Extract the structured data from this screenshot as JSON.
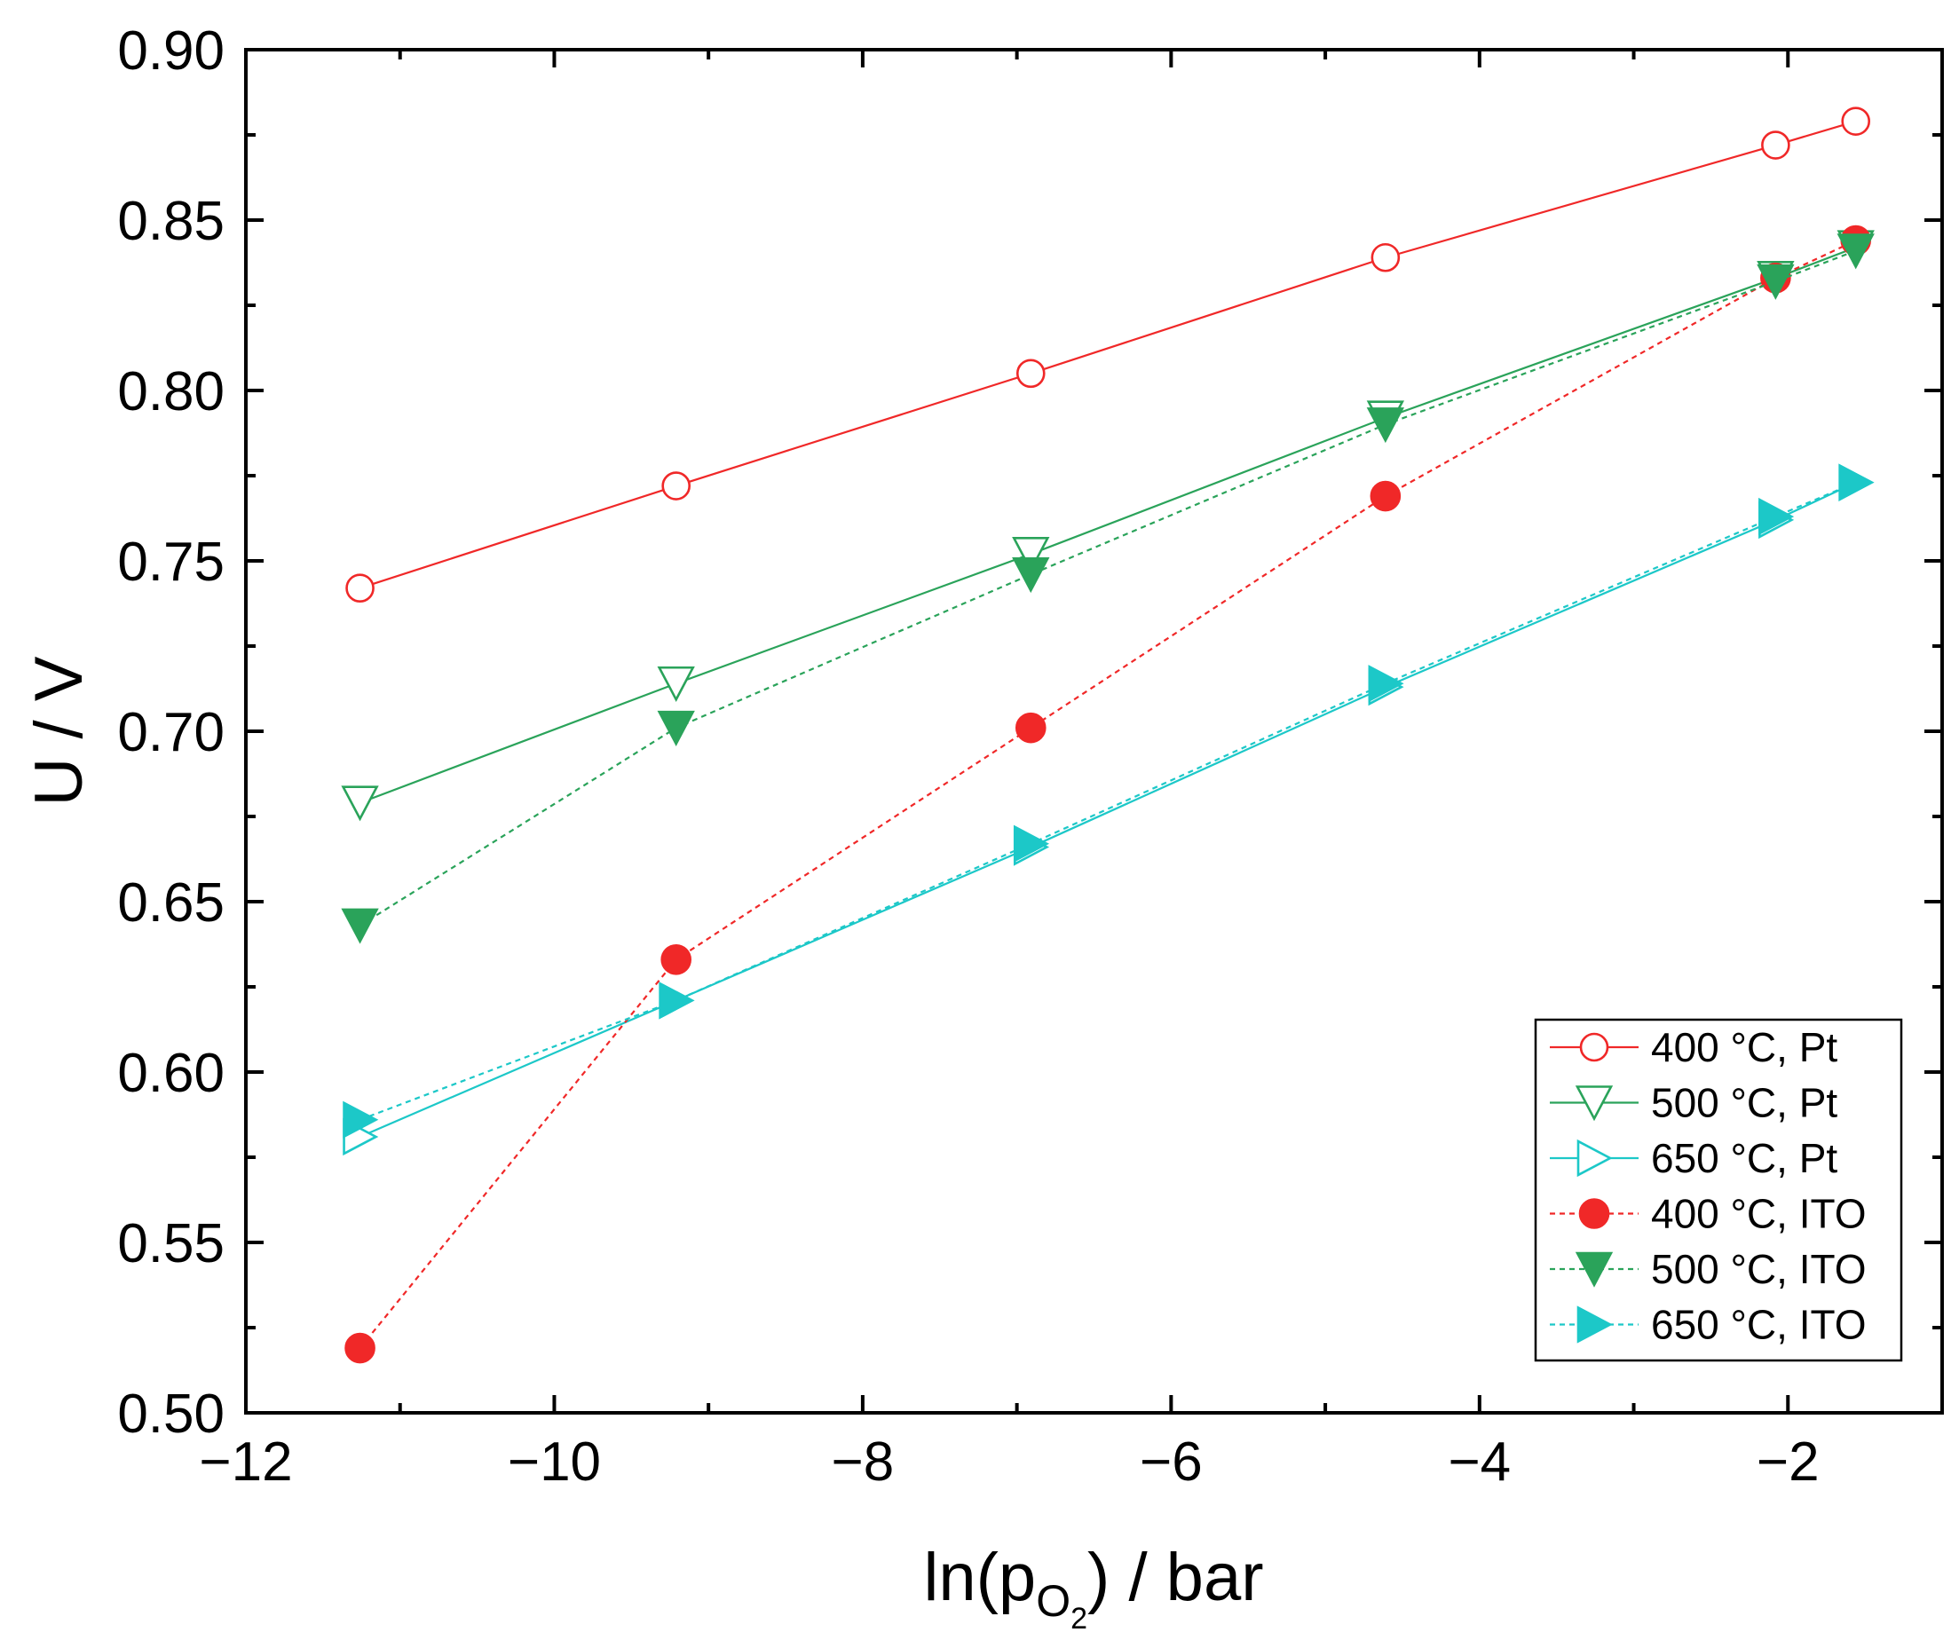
{
  "chart_data": {
    "type": "line",
    "title": "",
    "xlabel": {
      "prefix": "ln(p",
      "sub": "O",
      "subsub": "2",
      "suffix": ") / bar"
    },
    "ylabel": "U / V",
    "xlim": [
      -12,
      -1
    ],
    "ylim": [
      0.5,
      0.9
    ],
    "xticks": [
      -12,
      -10,
      -8,
      -6,
      -4,
      -2
    ],
    "xtick_labels": [
      "−12",
      "−10",
      "−8",
      "−6",
      "−4",
      "−2"
    ],
    "yticks": [
      0.5,
      0.55,
      0.6,
      0.65,
      0.7,
      0.75,
      0.8,
      0.85,
      0.9
    ],
    "ytick_labels": [
      "0.50",
      "0.55",
      "0.60",
      "0.65",
      "0.70",
      "0.75",
      "0.80",
      "0.85",
      "0.90"
    ],
    "grid": false,
    "legend_position": "bottom-right",
    "x": [
      -11.26,
      -9.21,
      -6.91,
      -4.61,
      -2.08,
      -1.56
    ],
    "series": [
      {
        "name": "400 °C, Pt",
        "color": "#f02828",
        "marker": "circle",
        "filled": false,
        "line": "solid",
        "values": [
          0.742,
          0.772,
          0.805,
          0.839,
          0.872,
          0.879
        ]
      },
      {
        "name": "500 °C, Pt",
        "color": "#2aa35a",
        "marker": "triangle-down",
        "filled": false,
        "line": "solid",
        "values": [
          0.679,
          0.714,
          0.752,
          0.792,
          0.833,
          0.842
        ]
      },
      {
        "name": "650 °C, Pt",
        "color": "#1cc8c8",
        "marker": "triangle-right",
        "filled": false,
        "line": "solid",
        "values": [
          0.581,
          0.621,
          0.666,
          0.713,
          0.762,
          0.773
        ]
      },
      {
        "name": "400 °C, ITO",
        "color": "#f02828",
        "marker": "circle",
        "filled": true,
        "line": "dashed",
        "values": [
          0.519,
          0.633,
          0.701,
          0.769,
          0.833,
          0.844
        ]
      },
      {
        "name": "500 °C, ITO",
        "color": "#2aa35a",
        "marker": "triangle-down",
        "filled": true,
        "line": "dashed",
        "values": [
          0.643,
          0.701,
          0.746,
          0.79,
          0.832,
          0.841
        ]
      },
      {
        "name": "650 °C, ITO",
        "color": "#1cc8c8",
        "marker": "triangle-right",
        "filled": true,
        "line": "dashed",
        "values": [
          0.586,
          0.621,
          0.667,
          0.714,
          0.763,
          0.773
        ]
      }
    ]
  }
}
